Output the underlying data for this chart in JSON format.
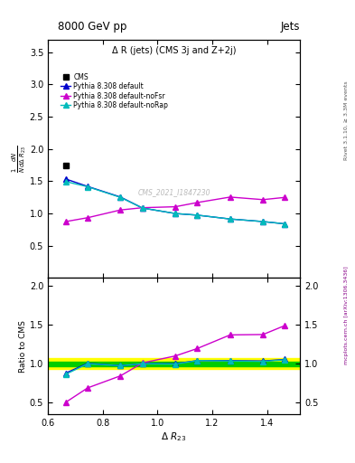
{
  "title_top": "8000 GeV pp",
  "title_right": "Jets",
  "plot_title": "Δ R (jets) (CMS 3j and Z+2j)",
  "ylabel_main": "$\\frac{1}{N}\\frac{dN}{d\\Delta\\ R_{23}}$",
  "ylabel_ratio": "Ratio to CMS",
  "xlabel": "$\\Delta\\ R_{23}$",
  "right_label": "Rivet 3.1.10, ≥ 3.3M events",
  "watermark": "CMS_2021_I1847230",
  "mcplots_label": "mcplots.cern.ch [arXiv:1306.3436]",
  "xlim": [
    0.6,
    1.52
  ],
  "ylim_main": [
    0.0,
    3.7
  ],
  "ylim_ratio": [
    0.35,
    2.1
  ],
  "yticks_main": [
    0.5,
    1.0,
    1.5,
    2.0,
    2.5,
    3.0,
    3.5
  ],
  "yticks_ratio": [
    0.5,
    1.0,
    1.5,
    2.0
  ],
  "cms_x": [
    0.665
  ],
  "cms_y": [
    1.74
  ],
  "pythia_default_x": [
    0.665,
    0.745,
    0.865,
    0.945,
    1.065,
    1.145,
    1.265,
    1.385,
    1.465
  ],
  "pythia_default_y": [
    1.535,
    1.42,
    1.255,
    1.085,
    1.0,
    0.975,
    0.915,
    0.875,
    0.84
  ],
  "pythia_noFSR_x": [
    0.665,
    0.745,
    0.865,
    0.945,
    1.065,
    1.145,
    1.265,
    1.385,
    1.465
  ],
  "pythia_noFSR_y": [
    0.875,
    0.935,
    1.055,
    1.09,
    1.105,
    1.17,
    1.255,
    1.215,
    1.25
  ],
  "pythia_noRap_x": [
    0.665,
    0.745,
    0.865,
    0.945,
    1.065,
    1.145,
    1.265,
    1.385,
    1.465
  ],
  "pythia_noRap_y": [
    1.495,
    1.415,
    1.25,
    1.085,
    1.0,
    0.975,
    0.915,
    0.875,
    0.84
  ],
  "ratio_default_x": [
    0.665,
    0.745,
    0.865,
    0.945,
    1.065,
    1.145,
    1.265,
    1.385,
    1.465
  ],
  "ratio_default_y": [
    0.88,
    1.005,
    0.975,
    1.0,
    1.0,
    1.04,
    1.04,
    1.035,
    1.055
  ],
  "ratio_noFSR_x": [
    0.665,
    0.745,
    0.865,
    0.945,
    1.065,
    1.145,
    1.265,
    1.385,
    1.465
  ],
  "ratio_noFSR_y": [
    0.505,
    0.69,
    0.845,
    1.01,
    1.1,
    1.195,
    1.37,
    1.375,
    1.49
  ],
  "ratio_noRap_x": [
    0.665,
    0.745,
    0.865,
    0.945,
    1.065,
    1.145,
    1.265,
    1.385,
    1.465
  ],
  "ratio_noRap_y": [
    0.865,
    1.0,
    0.975,
    1.0,
    0.995,
    1.04,
    1.035,
    1.03,
    1.05
  ],
  "color_cms": "#000000",
  "color_default": "#0000cc",
  "color_noFSR": "#cc00cc",
  "color_noRap": "#00bbbb",
  "band_color_yellow": "#ffff00",
  "band_color_green": "#00cc00",
  "band_ylow": 0.93,
  "band_yhigh": 1.07,
  "green_band_low": 0.97,
  "green_band_high": 1.03,
  "green_line_y": 1.0
}
